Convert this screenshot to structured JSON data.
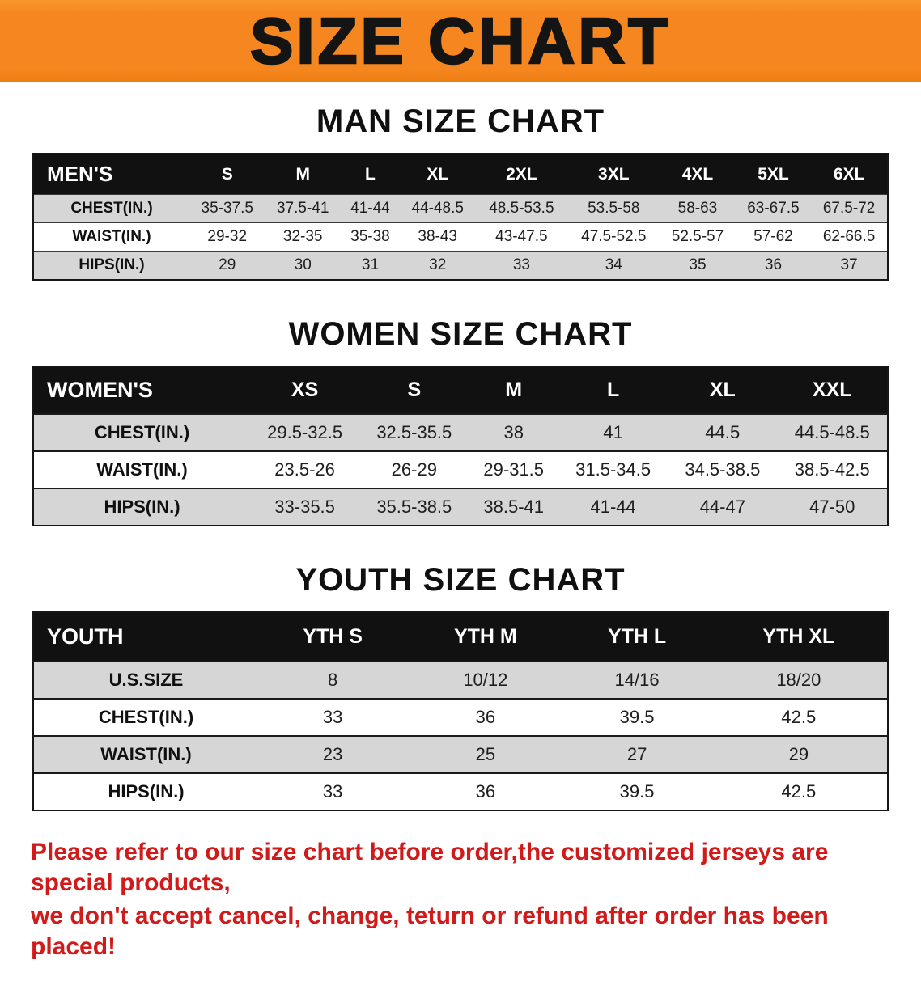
{
  "banner": {
    "title": "SIZE CHART"
  },
  "colors": {
    "banner_bg": "#f6861f",
    "header_bg": "#111111",
    "stripe": "#d6d6d6",
    "note_color": "#d11a1a"
  },
  "sections": {
    "men": {
      "heading": "MAN SIZE CHART",
      "table": {
        "header": [
          "MEN'S",
          "S",
          "M",
          "L",
          "XL",
          "2XL",
          "3XL",
          "4XL",
          "5XL",
          "6XL"
        ],
        "rows": [
          [
            "CHEST(IN.)",
            "35-37.5",
            "37.5-41",
            "41-44",
            "44-48.5",
            "48.5-53.5",
            "53.5-58",
            "58-63",
            "63-67.5",
            "67.5-72"
          ],
          [
            "WAIST(IN.)",
            "29-32",
            "32-35",
            "35-38",
            "38-43",
            "43-47.5",
            "47.5-52.5",
            "52.5-57",
            "57-62",
            "62-66.5"
          ],
          [
            "HIPS(IN.)",
            "29",
            "30",
            "31",
            "32",
            "33",
            "34",
            "35",
            "36",
            "37"
          ]
        ]
      }
    },
    "women": {
      "heading": "WOMEN SIZE CHART",
      "table": {
        "header": [
          "WOMEN'S",
          "XS",
          "S",
          "M",
          "L",
          "XL",
          "XXL"
        ],
        "rows": [
          [
            "CHEST(IN.)",
            "29.5-32.5",
            "32.5-35.5",
            "38",
            "41",
            "44.5",
            "44.5-48.5"
          ],
          [
            "WAIST(IN.)",
            "23.5-26",
            "26-29",
            "29-31.5",
            "31.5-34.5",
            "34.5-38.5",
            "38.5-42.5"
          ],
          [
            "HIPS(IN.)",
            "33-35.5",
            "35.5-38.5",
            "38.5-41",
            "41-44",
            "44-47",
            "47-50"
          ]
        ]
      }
    },
    "youth": {
      "heading": "YOUTH SIZE CHART",
      "table": {
        "header": [
          "YOUTH",
          "YTH S",
          "YTH M",
          "YTH L",
          "YTH XL"
        ],
        "rows": [
          [
            "U.S.SIZE",
            "8",
            "10/12",
            "14/16",
            "18/20"
          ],
          [
            "CHEST(IN.)",
            "33",
            "36",
            "39.5",
            "42.5"
          ],
          [
            "WAIST(IN.)",
            "23",
            "25",
            "27",
            "29"
          ],
          [
            "HIPS(IN.)",
            "33",
            "36",
            "39.5",
            "42.5"
          ]
        ]
      }
    }
  },
  "note": {
    "line1": "Please refer to our size chart before order,the customized jerseys are special products,",
    "line2": "we don't accept cancel, change, teturn or refund after order has been placed!"
  }
}
